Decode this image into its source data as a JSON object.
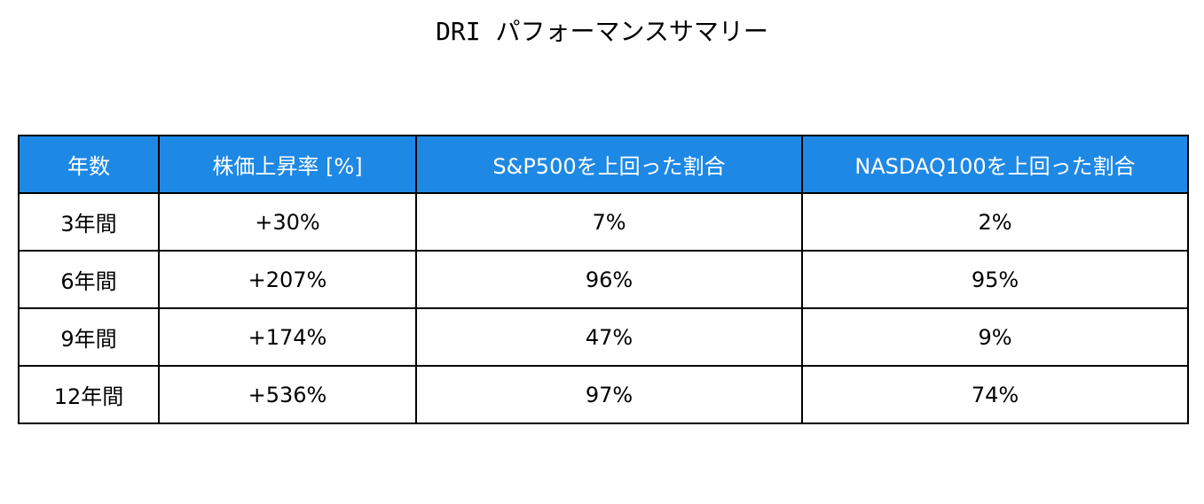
{
  "header": {
    "title": "DRI パフォーマンスサマリー"
  },
  "table": {
    "columns": [
      "年数",
      "株価上昇率 [%]",
      "S&P500を上回った割合",
      "NASDAQ100を上回った割合"
    ],
    "rows": [
      [
        "3年間",
        "+30%",
        "7%",
        "2%"
      ],
      [
        "6年間",
        "+207%",
        "96%",
        "95%"
      ],
      [
        "9年間",
        "+174%",
        "47%",
        "9%"
      ],
      [
        "12年間",
        "+536%",
        "97%",
        "74%"
      ]
    ]
  }
}
